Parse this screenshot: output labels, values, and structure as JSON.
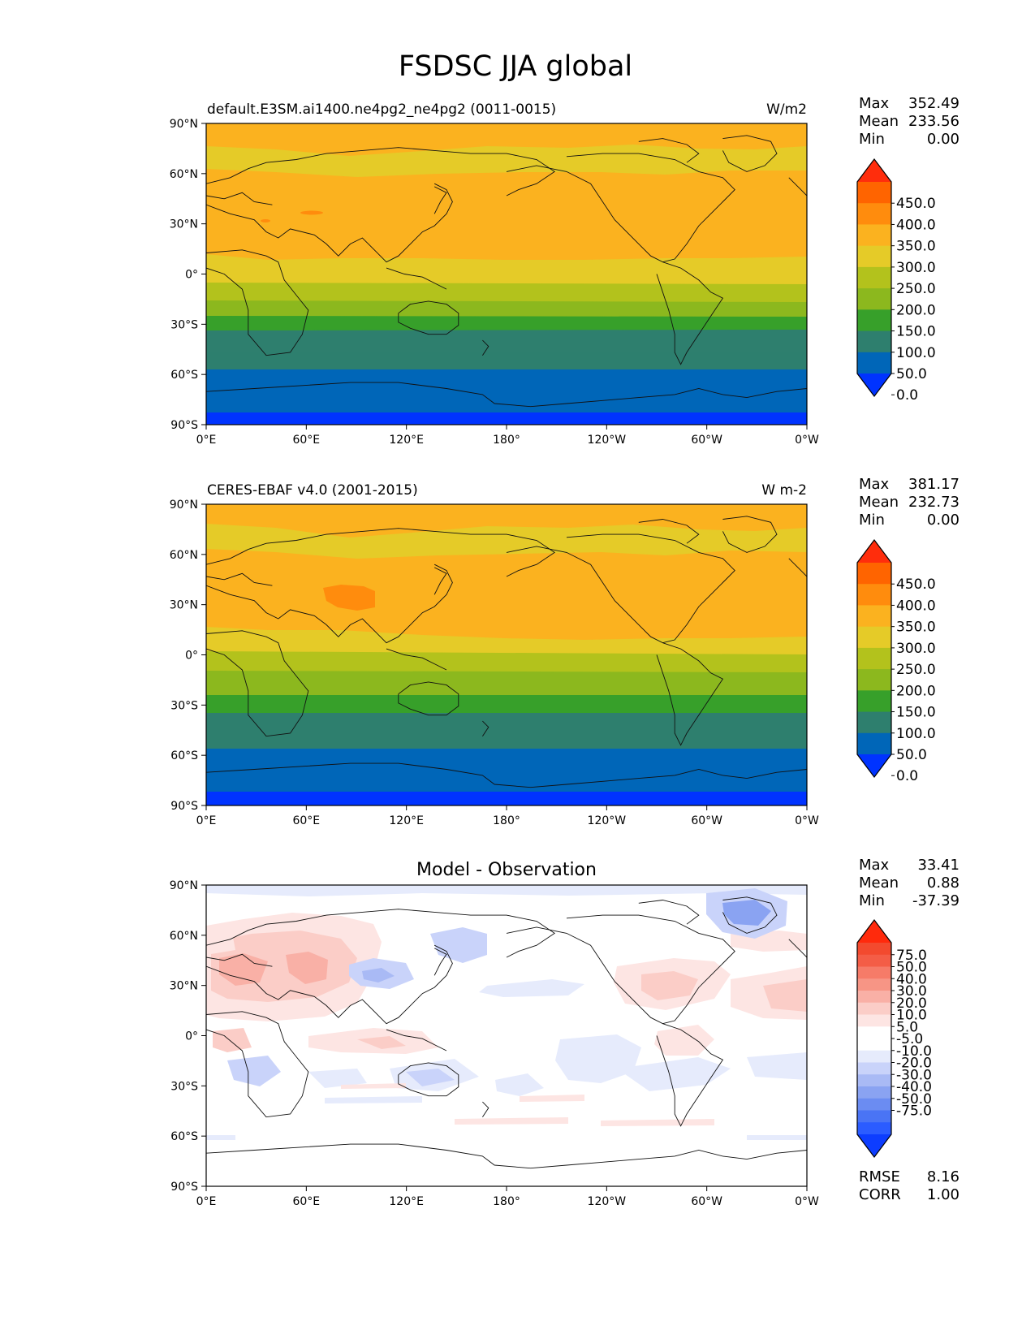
{
  "figure": {
    "title": "FSDSC JJA global",
    "lat_ticks": [
      "90°N",
      "60°N",
      "30°N",
      "0°",
      "30°S",
      "60°S",
      "90°S"
    ],
    "lon_ticks": [
      "0°E",
      "60°E",
      "120°E",
      "180°",
      "120°W",
      "60°W",
      "0°W"
    ]
  },
  "panels": [
    {
      "id": "model",
      "left_title": "default.E3SM.ai1400.ne4pg2_ne4pg2 (0011-0015)",
      "center_title": "",
      "units": "W/m2",
      "stats": {
        "max_label": "Max",
        "max": "352.49",
        "mean_label": "Mean",
        "mean": "233.56",
        "min_label": "Min",
        "min": "0.00"
      },
      "colorbar": {
        "colors": [
          "#0033ff",
          "#0066b8",
          "#2e7f6e",
          "#37a02a",
          "#8cb81e",
          "#b3c21c",
          "#e5cb28",
          "#fbb21f",
          "#ff8c0d",
          "#ff6400",
          "#ff2d0c"
        ],
        "labels": [
          "450.0",
          "400.0",
          "350.0",
          "300.0",
          "250.0",
          "200.0",
          "150.0",
          "100.0",
          "50.0",
          "0.0"
        ]
      }
    },
    {
      "id": "obs",
      "left_title": "CERES-EBAF v4.0 (2001-2015)",
      "center_title": "",
      "units": "W m-2",
      "stats": {
        "max_label": "Max",
        "max": "381.17",
        "mean_label": "Mean",
        "mean": "232.73",
        "min_label": "Min",
        "min": "0.00"
      },
      "colorbar": {
        "colors": [
          "#0033ff",
          "#0066b8",
          "#2e7f6e",
          "#37a02a",
          "#8cb81e",
          "#b3c21c",
          "#e5cb28",
          "#fbb21f",
          "#ff8c0d",
          "#ff6400",
          "#ff2d0c"
        ],
        "labels": [
          "450.0",
          "400.0",
          "350.0",
          "300.0",
          "250.0",
          "200.0",
          "150.0",
          "100.0",
          "50.0",
          "0.0"
        ]
      }
    },
    {
      "id": "diff",
      "left_title": "",
      "center_title": "Model - Observation",
      "units": "",
      "stats": {
        "max_label": "Max",
        "max": "33.41",
        "mean_label": "Mean",
        "mean": "0.88",
        "min_label": "Min",
        "min": "-37.39"
      },
      "extra_stats": {
        "rmse_label": "RMSE",
        "rmse": "8.16",
        "corr_label": "CORR",
        "corr": "1.00"
      },
      "colorbar": {
        "colors": [
          "#0d3dff",
          "#2b5cff",
          "#4a74f5",
          "#6b8cf2",
          "#8aa3f2",
          "#a9baf5",
          "#c9d3fa",
          "#e6ebfc",
          "#ffffff",
          "#ffffff",
          "#fde5e3",
          "#fbcdc7",
          "#f9b0a6",
          "#f79585",
          "#f67b68",
          "#f45d46",
          "#f34a2e",
          "#ff2a0c"
        ],
        "labels": [
          "75.0",
          "50.0",
          "40.0",
          "30.0",
          "20.0",
          "10.0",
          "5.0",
          "-5.0",
          "-10.0",
          "-20.0",
          "-30.0",
          "-40.0",
          "-50.0",
          "-75.0"
        ]
      }
    }
  ]
}
